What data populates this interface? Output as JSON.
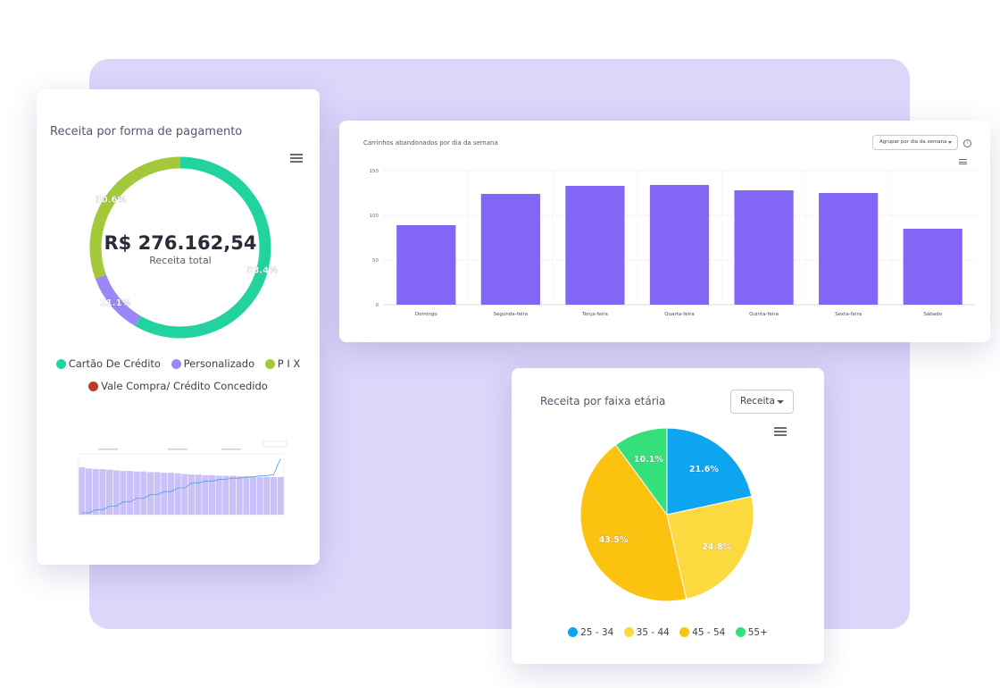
{
  "payment_card": {
    "title": "Receita por forma de pagamento",
    "total_value": "R$ 276.162,54",
    "total_label": "Receita total",
    "legend": [
      {
        "label": "Cartão De Crédito",
        "color": "#22d3a0"
      },
      {
        "label": "Personalizado",
        "color": "#9b87f5"
      },
      {
        "label": "P I X",
        "color": "#a3c93a"
      },
      {
        "label": "Vale Compra/ Crédito Concedido",
        "color": "#c0392b"
      }
    ]
  },
  "abandoned_card": {
    "title": "Carrinhos abandonados por dia da semana",
    "group_select": "Agrupar por dia da semana",
    "info_icon": "info-icon"
  },
  "age_card": {
    "title": "Receita por faixa etária",
    "select_value": "Receita",
    "legend": [
      {
        "label": "25 - 34",
        "color": "#0ea5f0"
      },
      {
        "label": "35 - 44",
        "color": "#fcd93f"
      },
      {
        "label": "45 - 54",
        "color": "#fbc20f"
      },
      {
        "label": "55+",
        "color": "#34e07a"
      }
    ]
  },
  "chart_data": [
    {
      "type": "pie",
      "variant": "donut",
      "slices": [
        {
          "name": "Cartão De Crédito",
          "value": 58.4,
          "label": "58.4%",
          "color": "#22d3a0"
        },
        {
          "name": "Personalizado",
          "value": 11.1,
          "label": "11.1%",
          "color": "#9b87f5"
        },
        {
          "name": "P I X",
          "value": 30.6,
          "label": "30.6%",
          "color": "#a3c93a"
        }
      ]
    },
    {
      "type": "bar",
      "categories": [
        "Domingo",
        "Segunda-feira",
        "Terça-feira",
        "Quarta-feira",
        "Quinta-feira",
        "Sexta-feira",
        "Sábado"
      ],
      "values": [
        89,
        124,
        133,
        134,
        128,
        125,
        85
      ],
      "ylim": [
        0,
        150
      ],
      "yticks": [
        0,
        50,
        100,
        150
      ],
      "color": "#8366f5",
      "grid": true
    },
    {
      "type": "pie",
      "slices": [
        {
          "name": "25 - 34",
          "value": 21.6,
          "label": "21.6%",
          "color": "#0ea5f0"
        },
        {
          "name": "35 - 44",
          "value": 24.8,
          "label": "24.8%",
          "color": "#fcd93f"
        },
        {
          "name": "45 - 54",
          "value": 43.5,
          "label": "43.5%",
          "color": "#fbc20f"
        },
        {
          "name": "55+",
          "value": 10.1,
          "label": "10.1%",
          "color": "#34e07a"
        }
      ]
    },
    {
      "type": "bar",
      "variant": "bar-line-combo",
      "bar_values": [
        78,
        76,
        75,
        75,
        74,
        73,
        72,
        72,
        71,
        71,
        70,
        70,
        69,
        69,
        68,
        67,
        66,
        66,
        65,
        65,
        64,
        64,
        64,
        63,
        63,
        63,
        62,
        62,
        62,
        62
      ],
      "line_values": [
        3,
        3,
        8,
        8,
        14,
        14,
        21,
        21,
        27,
        27,
        33,
        33,
        38,
        38,
        44,
        44,
        52,
        52,
        55,
        55,
        58,
        58,
        60,
        60,
        62,
        62,
        64,
        64,
        66,
        92
      ],
      "ylim": [
        0,
        100
      ],
      "bar_color": "#c9c1f7",
      "line_color": "#5aa0e6"
    }
  ]
}
